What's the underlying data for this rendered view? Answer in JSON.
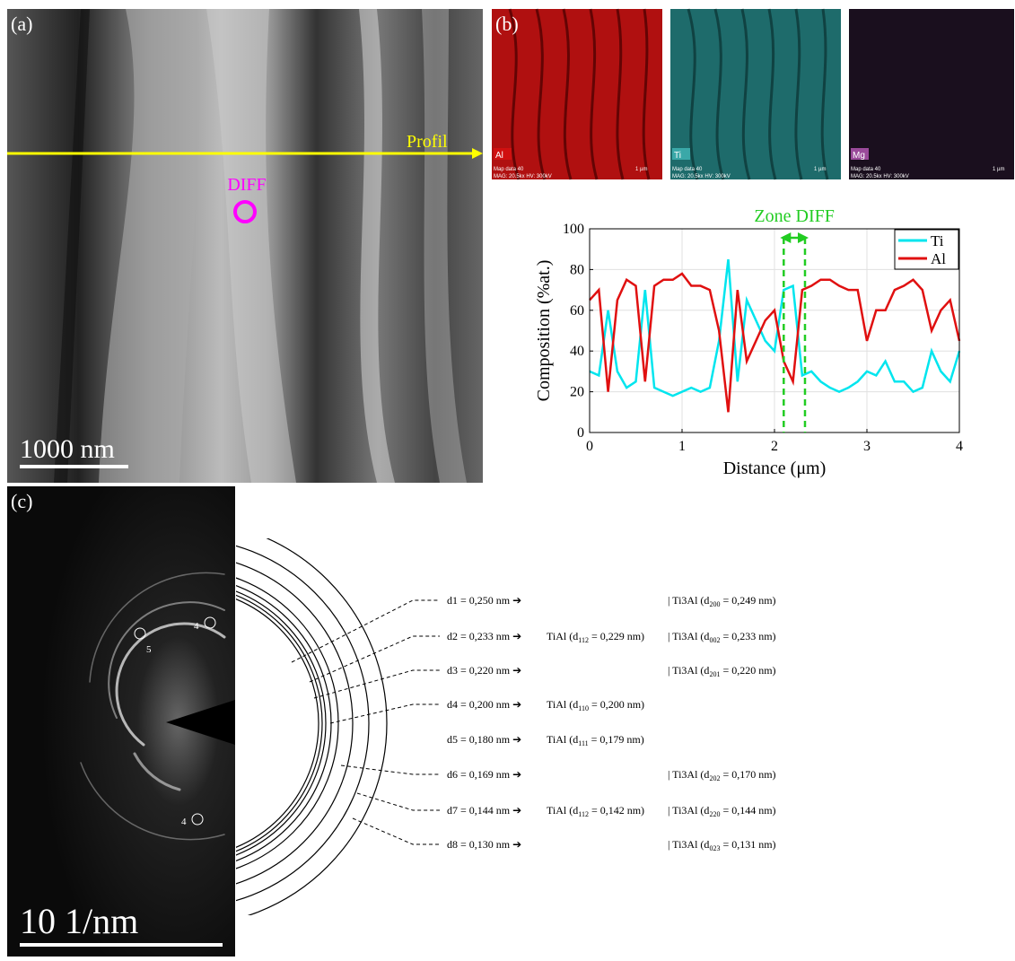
{
  "panel_a": {
    "label": "(a)",
    "arrow_label": "Profil",
    "circle_label": "DIFF",
    "scale_bar": "1000 nm"
  },
  "panel_b": {
    "label": "(b)",
    "maps": [
      {
        "element": "Al",
        "info": "Map data 40",
        "info2": "MAG: 20.5kx  HV: 300kV",
        "scale": "1 µm"
      },
      {
        "element": "Ti",
        "info": "Map data 40",
        "info2": "MAG: 20.5kx  HV: 300kV",
        "scale": "1 µm"
      },
      {
        "element": "Mg",
        "info": "Map data 40",
        "info2": "MAG: 20.5kx  HV: 300kV",
        "scale": "1 µm"
      }
    ]
  },
  "chart_data": {
    "type": "line",
    "title": "Zone DIFF",
    "xlabel": "Distance (μm)",
    "ylabel": "Composition (%at.)",
    "xlim": [
      0,
      4
    ],
    "ylim": [
      0,
      100
    ],
    "xticks": [
      0,
      1,
      2,
      3,
      4
    ],
    "yticks": [
      0,
      20,
      40,
      60,
      80,
      100
    ],
    "grid": true,
    "legend": "upper right",
    "zone": [
      2.1,
      2.33
    ],
    "zone_color": "#22cc22",
    "x": [
      0,
      0.1,
      0.2,
      0.3,
      0.4,
      0.5,
      0.6,
      0.7,
      0.8,
      0.9,
      1,
      1.1,
      1.2,
      1.3,
      1.4,
      1.5,
      1.6,
      1.7,
      1.8,
      1.9,
      2,
      2.1,
      2.2,
      2.3,
      2.4,
      2.5,
      2.6,
      2.7,
      2.8,
      2.9,
      3,
      3.1,
      3.2,
      3.3,
      3.4,
      3.5,
      3.6,
      3.7,
      3.8,
      3.9,
      4
    ],
    "series": [
      {
        "name": "Ti",
        "color": "#00e5ee",
        "values": [
          30,
          28,
          60,
          30,
          22,
          25,
          70,
          22,
          20,
          18,
          20,
          22,
          20,
          22,
          45,
          85,
          25,
          65,
          55,
          45,
          40,
          70,
          72,
          28,
          30,
          25,
          22,
          20,
          22,
          25,
          30,
          28,
          35,
          25,
          25,
          20,
          22,
          40,
          30,
          25,
          40
        ]
      },
      {
        "name": "Al",
        "color": "#e01010",
        "values": [
          65,
          70,
          20,
          65,
          75,
          72,
          25,
          72,
          75,
          75,
          78,
          72,
          72,
          70,
          50,
          10,
          70,
          35,
          45,
          55,
          60,
          35,
          25,
          70,
          72,
          75,
          75,
          72,
          70,
          70,
          45,
          60,
          60,
          70,
          72,
          75,
          70,
          50,
          60,
          65,
          45
        ]
      }
    ]
  },
  "panel_c": {
    "label": "(c)",
    "scale_bar": "10 1/nm",
    "spot_labels": [
      "4",
      "5",
      "4"
    ],
    "rows": [
      {
        "d": "d1 = 0,250 nm ➔",
        "ti3al": [
          "| Ti3Al (d",
          "200",
          " = 0,249 nm)"
        ]
      },
      {
        "d": "d2 = 0,233 nm ➔",
        "tial": [
          "TiAl (d",
          "112",
          " = 0,229 nm)"
        ],
        "ti3al": [
          "| Ti3Al (d",
          "002",
          " = 0,233 nm)"
        ]
      },
      {
        "d": "d3 = 0,220 nm ➔",
        "ti3al": [
          "| Ti3Al (d",
          "201",
          " = 0,220 nm)"
        ]
      },
      {
        "d": "d4 = 0,200 nm ➔",
        "tial": [
          "TiAl (d",
          "110",
          " = 0,200 nm)"
        ]
      },
      {
        "d": "d5 = 0,180 nm ➔",
        "tial": [
          "TiAl (d",
          "111",
          " = 0,179 nm)"
        ]
      },
      {
        "d": "d6 = 0,169 nm ➔",
        "ti3al": [
          "| Ti3Al (d",
          "202",
          " = 0,170 nm)"
        ]
      },
      {
        "d": "d7 = 0,144 nm ➔",
        "tial": [
          "TiAl (d",
          "112",
          " = 0,142 nm)"
        ],
        "ti3al": [
          "| Ti3Al (d",
          "220",
          " = 0,144 nm)"
        ]
      },
      {
        "d": "d8 = 0,130 nm ➔",
        "ti3al": [
          "| Ti3Al (d",
          "023",
          " = 0,131 nm)"
        ]
      }
    ]
  }
}
